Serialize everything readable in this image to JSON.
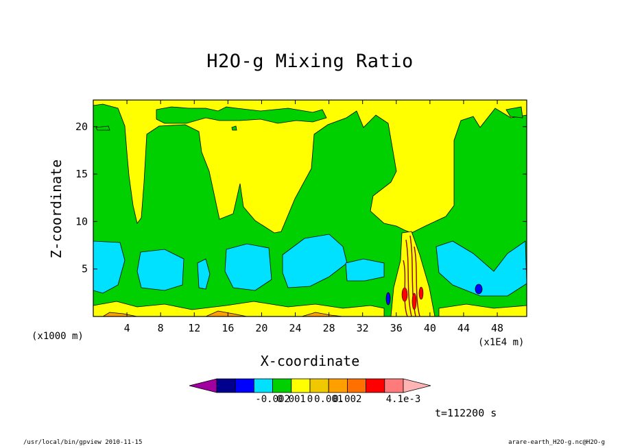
{
  "chart_data": {
    "type": "heatmap",
    "title": "H2O-g Mixing Ratio",
    "xlabel": "X-coordinate",
    "ylabel": "Z-coordinate",
    "x_unit_left": "(x1000 m)",
    "x_unit_right": "(x1E4 m)",
    "xlim": [
      0,
      51.5
    ],
    "ylim": [
      0,
      22.8
    ],
    "x_ticks": [
      {
        "v": 4,
        "label": "4"
      },
      {
        "v": 8,
        "label": "8"
      },
      {
        "v": 12,
        "label": "12"
      },
      {
        "v": 16,
        "label": "16"
      },
      {
        "v": 20,
        "label": "20"
      },
      {
        "v": 24,
        "label": "24"
      },
      {
        "v": 28,
        "label": "28"
      },
      {
        "v": 32,
        "label": "32"
      },
      {
        "v": 36,
        "label": "36"
      },
      {
        "v": 40,
        "label": "40"
      },
      {
        "v": 44,
        "label": "44"
      },
      {
        "v": 48,
        "label": "48"
      }
    ],
    "y_ticks": [
      {
        "v": 5,
        "label": "5"
      },
      {
        "v": 10,
        "label": "10"
      },
      {
        "v": 15,
        "label": "15"
      },
      {
        "v": 20,
        "label": "20"
      }
    ],
    "colorbar": {
      "colors": [
        "#a000a0",
        "#00008c",
        "#0000ff",
        "#00e0ff",
        "#00d000",
        "#ffff00",
        "#f0c800",
        "#ffa000",
        "#ff7000",
        "#ff0000",
        "#ff7a7a",
        "#ffb4b4"
      ],
      "labels": [
        {
          "after_index": 3,
          "text": "-0.002"
        },
        {
          "after_index": 4,
          "text": "0.001"
        },
        {
          "after_index": 5,
          "text": "0"
        },
        {
          "after_index": 6,
          "text": "0.001"
        },
        {
          "after_index": 7,
          "text": "0.002"
        },
        {
          "after_index": 10,
          "text": "4.1e-3"
        }
      ]
    },
    "regions": {
      "background": "#00d000",
      "yellow": "#ffff00",
      "cyan": "#00e0ff",
      "blue": "#0000ff",
      "orange": "#ffa000",
      "red": "#ff0000",
      "darkred": "#8b0000"
    },
    "time_label": "t=112200 s"
  },
  "footer": {
    "left": "/usr/local/bin/gpview  2010-11-15",
    "right": "arare-earth_H2O-g.nc@H2O-g"
  }
}
